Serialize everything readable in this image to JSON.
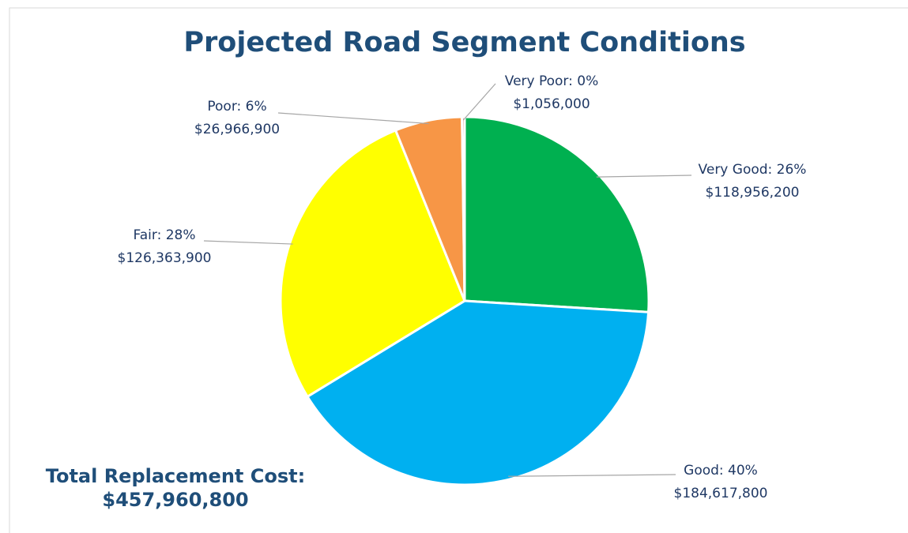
{
  "chart_data": {
    "type": "pie",
    "title": "Projected Road Segment Conditions",
    "categories": [
      "Very Good: 26%",
      "Good: 40%",
      "Fair: 28%",
      "Poor: 6%",
      "Very Poor: 0%"
    ],
    "values": [
      118956200,
      184617800,
      126363900,
      26966900,
      1056000
    ],
    "value_labels": [
      "$118,956,200",
      "$184,617,800",
      "$126,363,900",
      "$26,966,900",
      "$1,056,000"
    ],
    "colors": [
      "#00b050",
      "#00b0f0",
      "#ffff00",
      "#f79646",
      "#c0504d"
    ],
    "annotation": {
      "label": "Total Replacement Cost:",
      "value": "$457,960,800"
    }
  }
}
